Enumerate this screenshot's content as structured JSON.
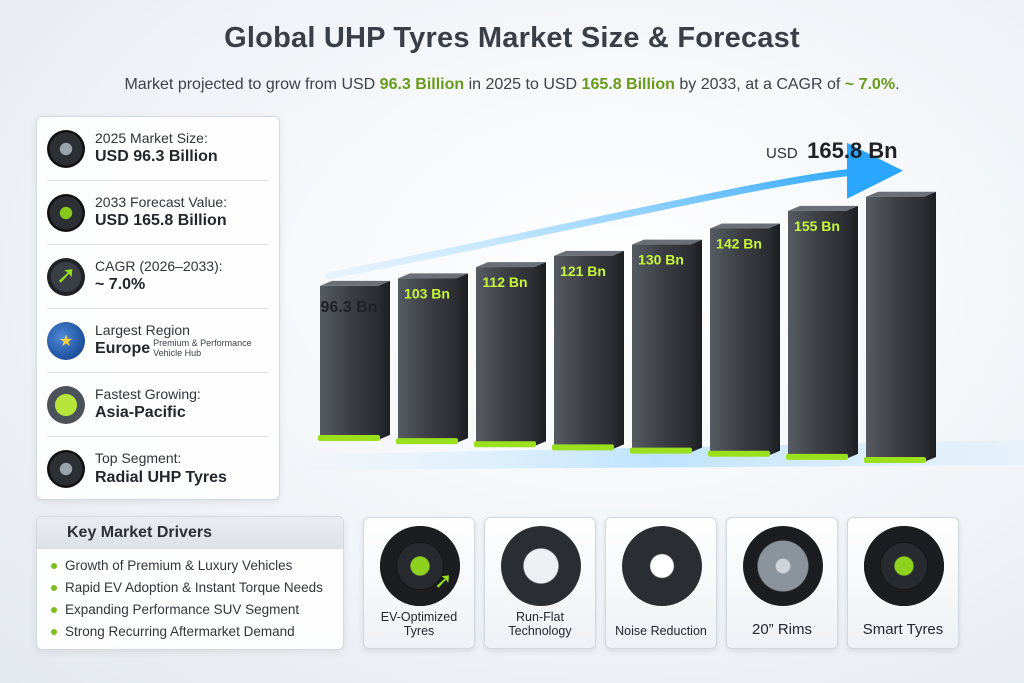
{
  "header": {
    "title": "Global UHP Tyres Market Size & Forecast",
    "subtitle_pre": "Market projected to grow from USD ",
    "subtitle_v1": "96.3 Billion",
    "subtitle_mid": " in 2025 to USD ",
    "subtitle_v2": "165.8 Billion",
    "subtitle_post": " by 2033, at a CAGR of ",
    "subtitle_cagr": "~ 7.0%",
    "subtitle_end": "."
  },
  "stats": [
    {
      "label": "2025 Market Size:",
      "value": "USD 96.3 Billion",
      "icon": "tyre-icon"
    },
    {
      "label": "2033 Forecast Value:",
      "value": "USD 165.8 Billion",
      "icon": "tyre-green-icon"
    },
    {
      "label": "CAGR (2026–2033):",
      "value": "~ 7.0%",
      "icon": "growth-arrow-icon"
    },
    {
      "label": "Largest Region",
      "value": "Europe",
      "note": "Premium & Performance Vehicle Hub",
      "icon": "globe-icon"
    },
    {
      "label": "Fastest Growing:",
      "value": "Asia-Pacific",
      "icon": "region-map-icon"
    },
    {
      "label": "Top Segment:",
      "value": "Radial UHP Tyres",
      "icon": "radial-tyre-icon"
    }
  ],
  "chart_data": {
    "type": "bar",
    "values": [
      96.3,
      103,
      112,
      121,
      130,
      142,
      155,
      165.8
    ],
    "labels": [
      "96.3 Bn",
      "103 Bn",
      "112 Bn",
      "121 Bn",
      "130 Bn",
      "142 Bn",
      "155 Bn",
      ""
    ],
    "callout_prefix": "USD",
    "callout_value": "165.8 Bn",
    "ylim": [
      0,
      170
    ],
    "colors": {
      "bar": "#3a3e44",
      "accent": "#9be01d",
      "arrow": "#3fb3ff"
    }
  },
  "drivers": {
    "title": "Key Market Drivers",
    "items": [
      "Growth of Premium & Luxury Vehicles",
      "Rapid EV Adoption & Instant Torque Needs",
      "Expanding Performance SUV Segment",
      "Strong Recurring Aftermarket Demand"
    ]
  },
  "features": [
    {
      "label": "EV-Optimized Tyres",
      "icon": "ev-tyre-icon"
    },
    {
      "label": "Run-Flat Technology",
      "icon": "run-flat-tyre-icon"
    },
    {
      "label": "Noise Reduction",
      "icon": "noise-reduction-tyre-icon"
    },
    {
      "label": "20” Rims",
      "icon": "rim-icon"
    },
    {
      "label": "Smart Tyres",
      "icon": "smart-tyre-icon"
    }
  ]
}
